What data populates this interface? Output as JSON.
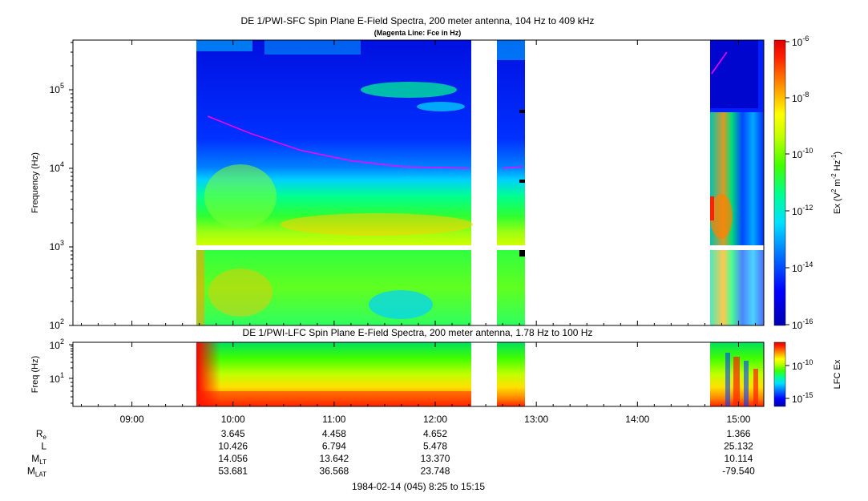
{
  "chart_data": [
    {
      "type": "heatmap",
      "title": "DE 1/PWI-SFC  Spin Plane E-Field Spectra, 200 meter antenna, 104 Hz to 409 kHz",
      "subtitle": "(Magenta Line: Fce in Hz)",
      "ylabel": "Frequency (Hz)",
      "yscale": "log",
      "ylim": [
        100,
        409000
      ],
      "yticks": [
        "10^2",
        "10^3",
        "10^4",
        "10^5"
      ],
      "colorbar": {
        "label": "Ex (V^2 m^-2 Hz^-1)",
        "scale": "log",
        "range": [
          1e-16,
          1e-06
        ],
        "ticks": [
          "10^-6",
          "10^-8",
          "10^-10",
          "10^-12",
          "10^-14",
          "10^-16"
        ]
      },
      "data_segments_utc": [
        [
          "09:40",
          "12:22"
        ],
        [
          "12:37",
          "12:54"
        ],
        [
          "14:44",
          "15:12"
        ]
      ],
      "fce_line": {
        "color": "#ff00ff",
        "points": [
          [
            "09:45",
            46000
          ],
          [
            "10:10",
            28000
          ],
          [
            "10:40",
            17000
          ],
          [
            "11:10",
            12500
          ],
          [
            "11:40",
            10500
          ],
          [
            "12:20",
            10000
          ],
          [
            "12:40",
            10000
          ],
          [
            "12:52",
            10500
          ],
          [
            "14:44",
            160000
          ],
          [
            "14:53",
            300000
          ]
        ]
      }
    },
    {
      "type": "heatmap",
      "title": "DE 1/PWI-LFC  Spin Plane E-Field Spectra, 200 meter antenna, 1.78 Hz to 100 Hz",
      "ylabel": "Freq (Hz)",
      "yscale": "log",
      "ylim": [
        1.78,
        100
      ],
      "yticks": [
        "10^1",
        "10^2"
      ],
      "colorbar": {
        "label": "LFC Ex",
        "scale": "log",
        "ticks": [
          "10^-10",
          "10^-15"
        ]
      }
    }
  ],
  "xaxis": {
    "ticks": [
      "09:00",
      "10:00",
      "11:00",
      "12:00",
      "13:00",
      "14:00",
      "15:00"
    ],
    "range": [
      "08:25",
      "15:15"
    ]
  },
  "ephemeris": {
    "rows": [
      {
        "label": "R",
        "sub": "e",
        "values": [
          "3.645",
          "4.458",
          "4.652",
          "1.366"
        ]
      },
      {
        "label": "L",
        "sub": "",
        "values": [
          "10.426",
          "6.794",
          "5.478",
          "25.132"
        ]
      },
      {
        "label": "M",
        "sub": "LT",
        "values": [
          "14.056",
          "13.642",
          "13.370",
          "10.114"
        ]
      },
      {
        "label": "M",
        "sub": "LAT",
        "values": [
          "53.681",
          "36.568",
          "23.748",
          "-79.540"
        ]
      }
    ],
    "columns_at": [
      "10:00",
      "11:00",
      "12:00",
      "15:00"
    ]
  },
  "footer": "1984-02-14 (045) 8:25 to 15:15"
}
